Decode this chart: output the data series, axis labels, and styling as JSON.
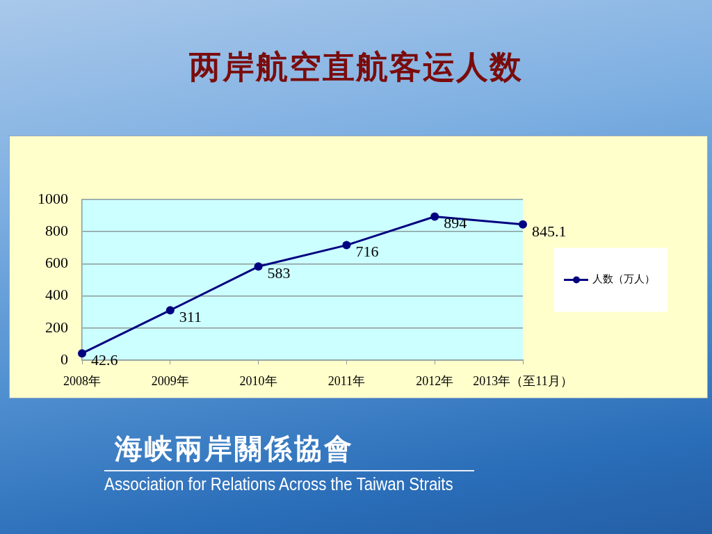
{
  "chart_data": {
    "type": "line",
    "title": "两岸航空直航客运人数",
    "categories": [
      "2008年",
      "2009年",
      "2010年",
      "2011年",
      "2012年",
      "2013年（至11月）"
    ],
    "series": [
      {
        "name": "人数（万人）",
        "color": "#000080",
        "values": [
          42.6,
          311,
          583,
          716,
          894,
          845.1
        ]
      }
    ],
    "ylim": [
      0,
      1000
    ],
    "yticks": [
      0,
      200,
      400,
      600,
      800,
      1000
    ],
    "grid": "y",
    "legend": "right",
    "marker": "circle",
    "data_labels": true,
    "annotations": [
      "海峡兩岸關係協會",
      "Association for Relations Across the Taiwan Straits"
    ]
  }
}
